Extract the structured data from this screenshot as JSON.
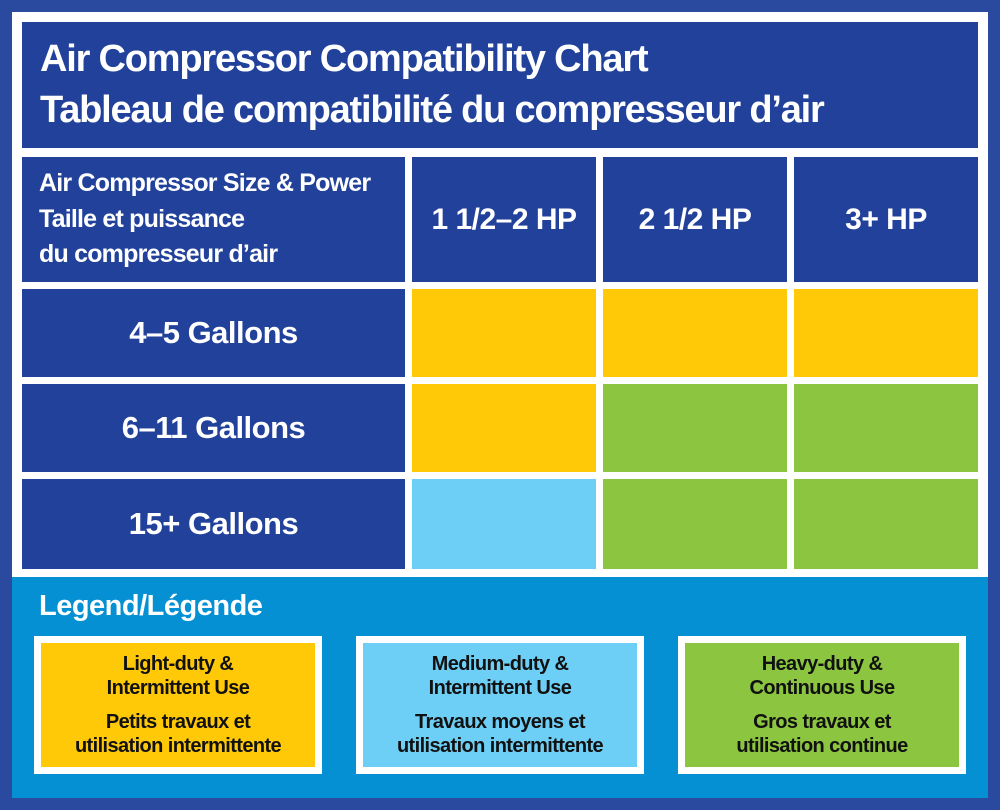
{
  "colors": {
    "frame_navy": "#2a4a9f",
    "panel_navy": "#21419b",
    "legend_blue": "#0590d4",
    "light_duty_yellow": "#ffc908",
    "medium_duty_blue": "#6ecff6",
    "heavy_duty_green": "#8cc540",
    "text_light": "#ffffff",
    "text_dark": "#111111"
  },
  "title": {
    "line1": "Air Compressor Compatibility Chart",
    "line2": "Tableau de compatibilité du compresseur d’air"
  },
  "table": {
    "header": {
      "size_power_lines": [
        "Air Compressor Size & Power",
        "Taille et puissance",
        "du compresseur d’air"
      ],
      "columns": [
        "1 1/2–2 HP",
        "2 1/2 HP",
        "3+ HP"
      ]
    },
    "rows": [
      {
        "label": "4–5 Gallons",
        "cells": [
          "light",
          "light",
          "light"
        ]
      },
      {
        "label": "6–11 Gallons",
        "cells": [
          "light",
          "heavy",
          "heavy"
        ]
      },
      {
        "label": "15+ Gallons",
        "cells": [
          "medium",
          "heavy",
          "heavy"
        ]
      }
    ]
  },
  "legend": {
    "title": "Legend/Légende",
    "items": [
      {
        "key": "light",
        "en": [
          "Light-duty &",
          "Intermittent Use"
        ],
        "fr": [
          "Petits travaux et",
          "utilisation intermittente"
        ]
      },
      {
        "key": "medium",
        "en": [
          "Medium-duty &",
          "Intermittent Use"
        ],
        "fr": [
          "Travaux moyens et",
          "utilisation intermittente"
        ]
      },
      {
        "key": "heavy",
        "en": [
          "Heavy-duty &",
          "Continuous Use"
        ],
        "fr": [
          "Gros travaux et",
          "utilisation continue"
        ]
      }
    ]
  },
  "chart_data": {
    "type": "table",
    "title": "Air Compressor Compatibility Chart / Tableau de compatibilité du compresseur d’air",
    "columns": [
      "Air Compressor Size & Power / Taille et puissance du compresseur d’air",
      "1 1/2–2 HP",
      "2 1/2 HP",
      "3+ HP"
    ],
    "rows": [
      [
        "4–5 Gallons",
        "Light-duty & Intermittent Use",
        "Light-duty & Intermittent Use",
        "Light-duty & Intermittent Use"
      ],
      [
        "6–11 Gallons",
        "Light-duty & Intermittent Use",
        "Heavy-duty & Continuous Use",
        "Heavy-duty & Continuous Use"
      ],
      [
        "15+ Gallons",
        "Medium-duty & Intermittent Use",
        "Heavy-duty & Continuous Use",
        "Heavy-duty & Continuous Use"
      ]
    ],
    "legend_position": "bottom",
    "legend_entries": [
      {
        "color": "#ffc908",
        "label": "Light-duty & Intermittent Use / Petits travaux et utilisation intermittente"
      },
      {
        "color": "#6ecff6",
        "label": "Medium-duty & Intermittent Use / Travaux moyens et utilisation intermittente"
      },
      {
        "color": "#8cc540",
        "label": "Heavy-duty & Continuous Use / Gros travaux et utilisation continue"
      }
    ]
  }
}
